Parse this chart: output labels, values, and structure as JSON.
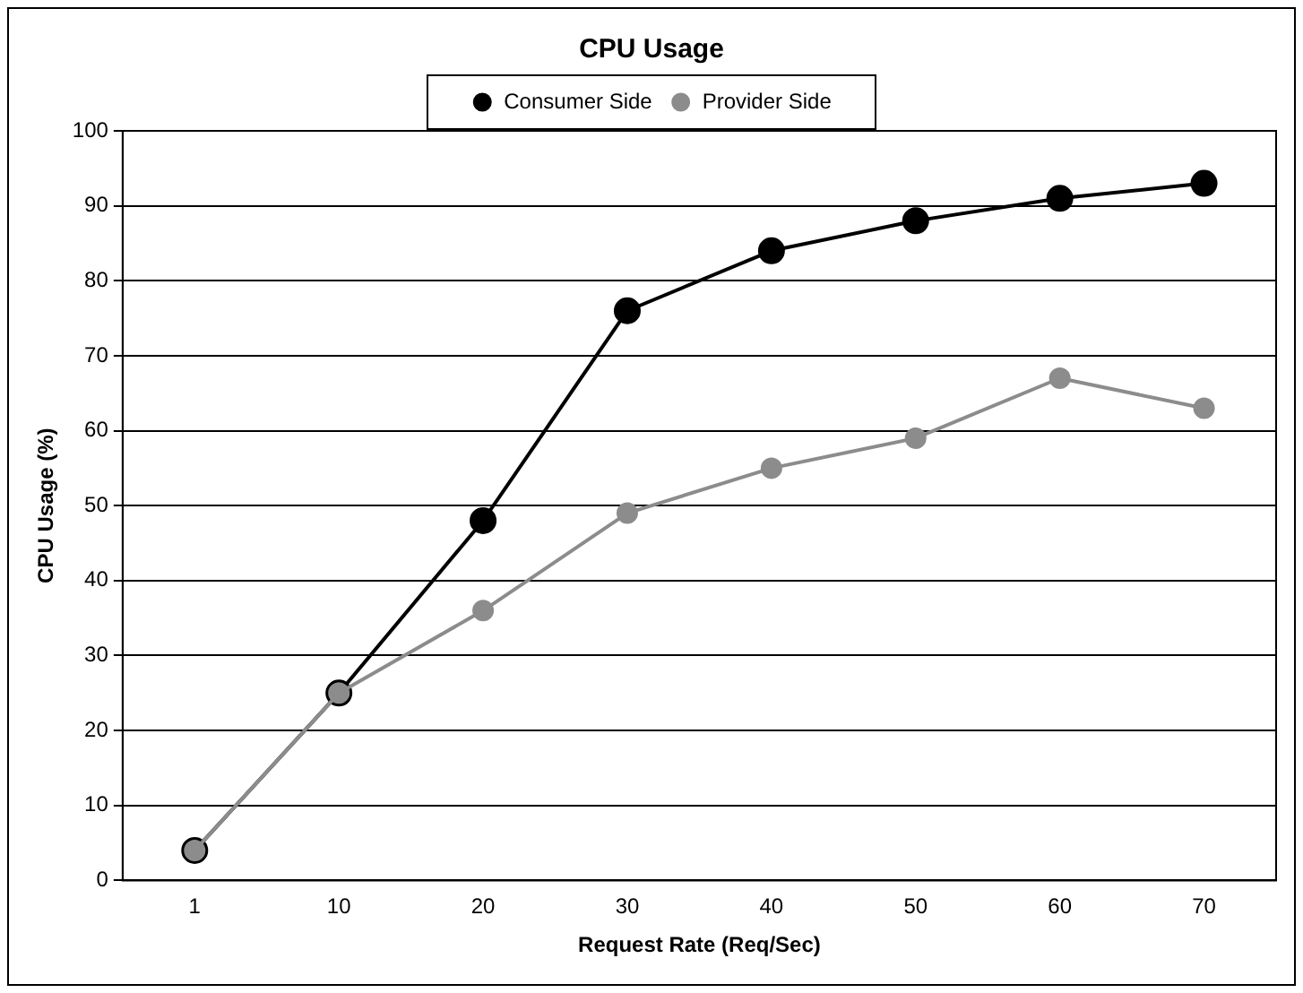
{
  "chart_data": {
    "type": "line",
    "title": "CPU Usage",
    "xlabel": "Request Rate (Req/Sec)",
    "ylabel": "CPU Usage (%)",
    "categories": [
      "1",
      "10",
      "20",
      "30",
      "40",
      "50",
      "60",
      "70"
    ],
    "series": [
      {
        "name": "Consumer Side",
        "color": "#000000",
        "values": [
          4,
          25,
          48,
          76,
          84,
          88,
          91,
          93
        ]
      },
      {
        "name": "Provider Side",
        "color": "#8c8c8c",
        "values": [
          4,
          25,
          36,
          49,
          55,
          59,
          67,
          63
        ]
      }
    ],
    "ylim": [
      0,
      100
    ],
    "yticks": [
      0,
      10,
      20,
      30,
      40,
      50,
      60,
      70,
      80,
      90,
      100
    ],
    "grid": "y",
    "legend": "top",
    "marker": "circle",
    "line_style": "solid"
  }
}
